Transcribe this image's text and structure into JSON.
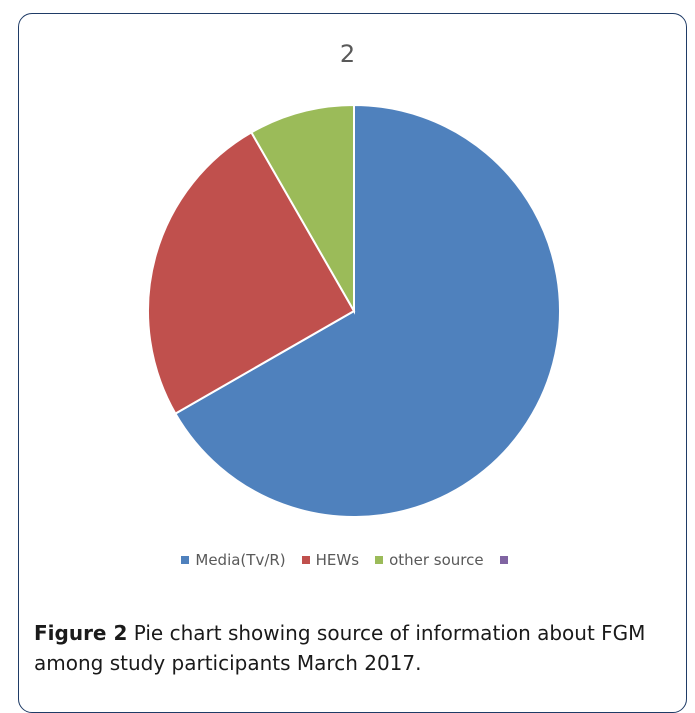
{
  "chart_data": {
    "type": "pie",
    "title": "2",
    "categories": [
      "Media(Tv/R)",
      "HEWs",
      "other source",
      ""
    ],
    "values": [
      66.7,
      25.0,
      8.3,
      0
    ],
    "colors": [
      "#4f81bd",
      "#c0504d",
      "#9bbb59",
      "#8064a2"
    ],
    "legend_position": "bottom"
  },
  "caption": {
    "label": "Figure 2",
    "text": " Pie chart showing source of information about FGM among study participants March 2017."
  }
}
